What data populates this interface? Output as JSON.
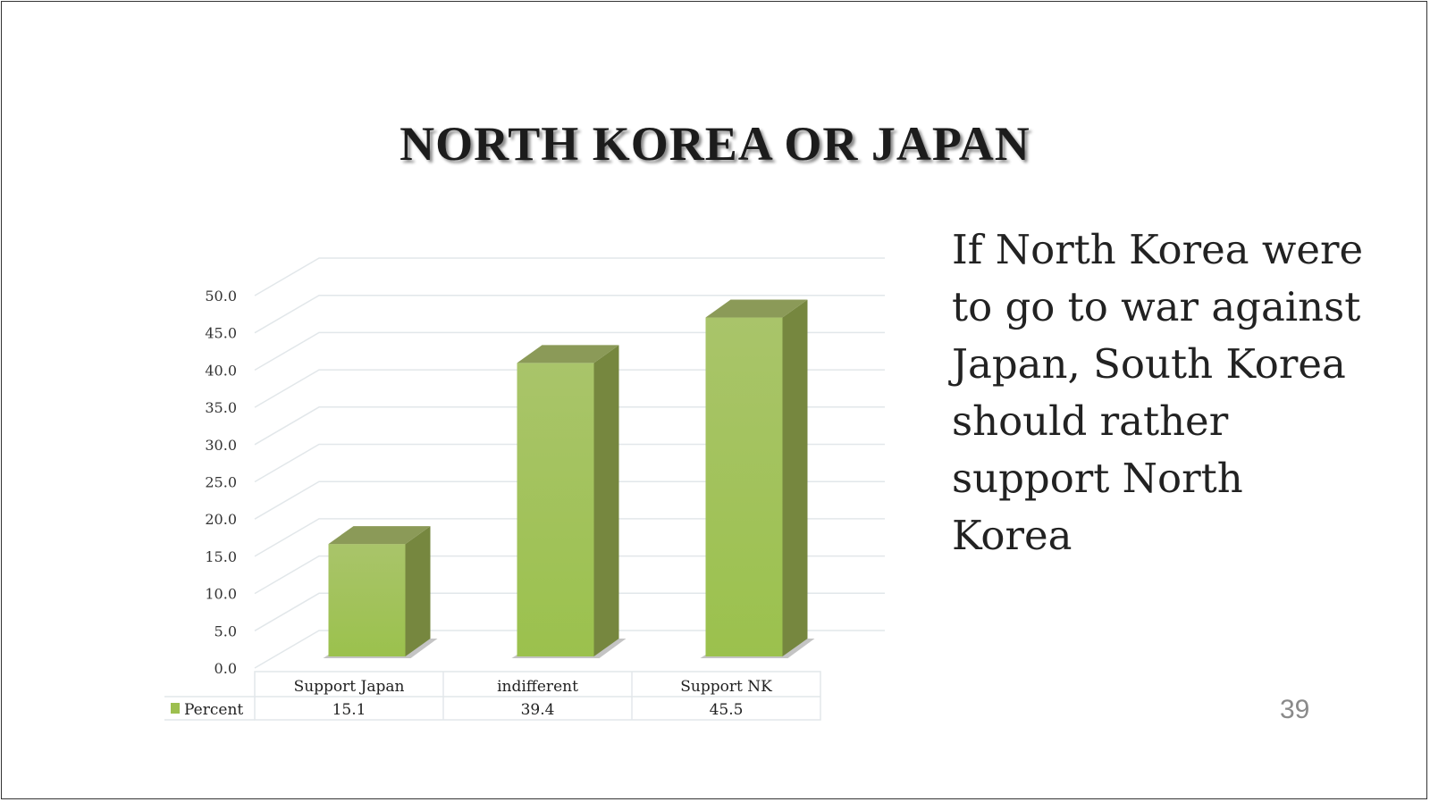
{
  "slide": {
    "title": "NORTH KOREA OR JAPAN",
    "side_text": "If North Korea were to go to war against Japan, South Korea should rather support North Korea",
    "page_number": "39"
  },
  "chart_data": {
    "type": "bar",
    "style": "3d-column",
    "categories": [
      "Support Japan",
      "indifferent",
      "Support NK"
    ],
    "series": [
      {
        "name": "Percent",
        "values": [
          15.1,
          39.4,
          45.5
        ],
        "color": "#9dbf4f"
      }
    ],
    "value_labels": [
      "15.1",
      "39.4",
      "45.5"
    ],
    "ylim": [
      0,
      50
    ],
    "yticks": [
      "0.0",
      "5.0",
      "10.0",
      "15.0",
      "20.0",
      "25.0",
      "30.0",
      "35.0",
      "40.0",
      "45.0",
      "50.0"
    ],
    "grid": true,
    "legend": "data-table-below"
  }
}
